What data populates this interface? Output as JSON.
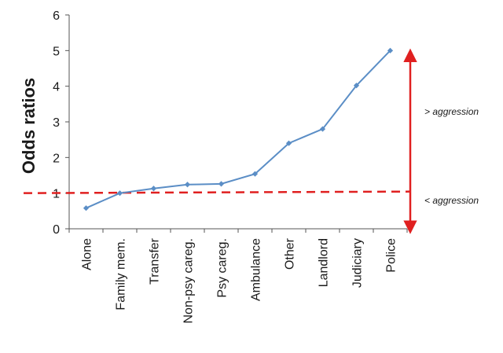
{
  "chart_data": {
    "type": "line",
    "ylabel": "Odds ratios",
    "xlabel": "",
    "categories": [
      "Alone",
      "Family mem.",
      "Transfer",
      "Non-psy careg.",
      "Psy careg.",
      "Ambulance",
      "Other",
      "Landlord",
      "Judiciary",
      "Police"
    ],
    "values": [
      0.58,
      1.0,
      1.13,
      1.24,
      1.26,
      1.54,
      2.4,
      2.8,
      4.02,
      5.0
    ],
    "ylim": [
      0,
      6
    ],
    "yticks": [
      0,
      1,
      2,
      3,
      4,
      5,
      6
    ],
    "grid": false,
    "reference_line": {
      "y": 1,
      "style": "dashed",
      "color": "#e02020"
    },
    "annotations": {
      "above": "> aggression",
      "below": "< aggression"
    },
    "colors": {
      "series": "#5b8ec6",
      "reference": "#e02020",
      "axis": "#555555"
    }
  }
}
